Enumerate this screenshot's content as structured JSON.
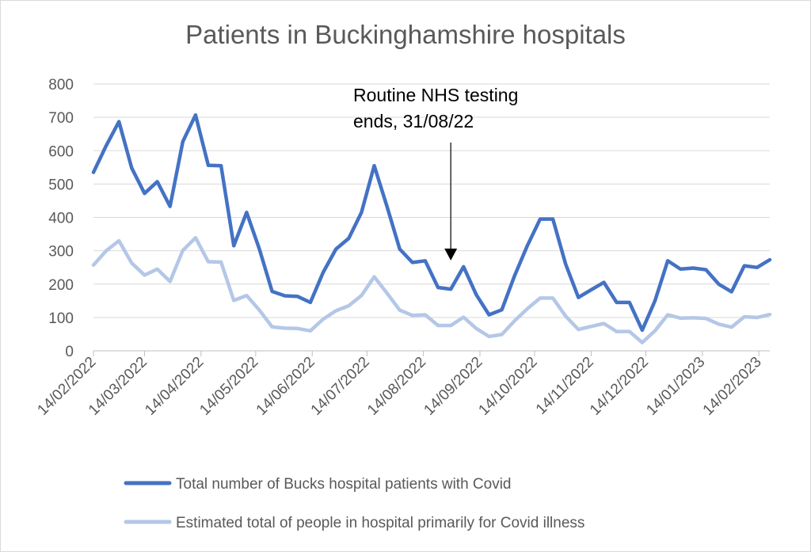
{
  "chart_data": {
    "type": "line",
    "title": "Patients in Buckinghamshire hospitals",
    "xlabel": "",
    "ylabel": "",
    "ylim": [
      0,
      800
    ],
    "yticks": [
      "0",
      "100",
      "200",
      "300",
      "400",
      "500",
      "600",
      "700",
      "800"
    ],
    "xticks": [
      "14/02/2022",
      "14/03/2022",
      "14/04/2022",
      "14/05/2022",
      "14/06/2022",
      "14/07/2022",
      "14/08/2022",
      "14/09/2022",
      "14/10/2022",
      "14/11/2022",
      "14/12/2022",
      "14/01/2023",
      "14/02/2023"
    ],
    "grid": "horizontal",
    "legend_position": "bottom",
    "x": [
      "14/02/2022",
      "21/02/2022",
      "28/02/2022",
      "07/03/2022",
      "14/03/2022",
      "21/03/2022",
      "28/03/2022",
      "04/04/2022",
      "11/04/2022",
      "18/04/2022",
      "25/04/2022",
      "02/05/2022",
      "09/05/2022",
      "16/05/2022",
      "23/05/2022",
      "30/05/2022",
      "06/06/2022",
      "13/06/2022",
      "20/06/2022",
      "27/06/2022",
      "04/07/2022",
      "11/07/2022",
      "18/07/2022",
      "25/07/2022",
      "01/08/2022",
      "08/08/2022",
      "15/08/2022",
      "22/08/2022",
      "29/08/2022",
      "05/09/2022",
      "12/09/2022",
      "19/09/2022",
      "26/09/2022",
      "03/10/2022",
      "10/10/2022",
      "17/10/2022",
      "24/10/2022",
      "31/10/2022",
      "07/11/2022",
      "14/11/2022",
      "21/11/2022",
      "28/11/2022",
      "05/12/2022",
      "12/12/2022",
      "19/12/2022",
      "26/12/2022",
      "02/01/2023",
      "09/01/2023",
      "16/01/2023",
      "23/01/2023",
      "30/01/2023",
      "06/02/2023",
      "13/02/2023",
      "20/02/2023"
    ],
    "series": [
      {
        "name": "Total number of Bucks hospital patients with Covid",
        "color": "#4472c4",
        "values": [
          535,
          615,
          687,
          548,
          472,
          507,
          433,
          627,
          707,
          556,
          555,
          315,
          415,
          305,
          178,
          165,
          163,
          145,
          235,
          305,
          337,
          415,
          555,
          433,
          305,
          265,
          270,
          190,
          185,
          252,
          168,
          108,
          123,
          225,
          315,
          395,
          395,
          260,
          160,
          183,
          205,
          145,
          145,
          62,
          150,
          270,
          245,
          248,
          243,
          200,
          177,
          255,
          250,
          273
        ]
      },
      {
        "name": "Estimated total of people in hospital primarily for Covid illness",
        "color": "#b4c7e7",
        "values": [
          257,
          300,
          330,
          263,
          227,
          245,
          208,
          301,
          339,
          267,
          266,
          151,
          166,
          122,
          72,
          68,
          67,
          60,
          95,
          120,
          135,
          166,
          222,
          173,
          122,
          106,
          108,
          76,
          76,
          101,
          67,
          43,
          49,
          90,
          126,
          158,
          158,
          104,
          64,
          73,
          82,
          58,
          58,
          25,
          60,
          108,
          98,
          99,
          97,
          80,
          71,
          102,
          100,
          109
        ]
      }
    ],
    "annotations": [
      {
        "text_lines": [
          "Routine NHS testing",
          "ends, 31/08/22"
        ],
        "x": "29/08/2022",
        "y": 252
      }
    ]
  }
}
